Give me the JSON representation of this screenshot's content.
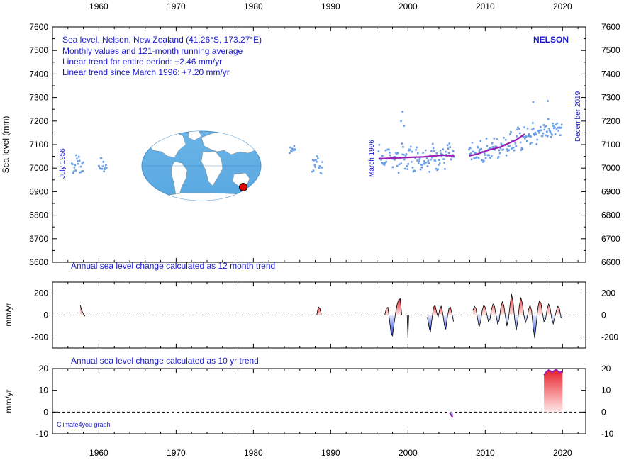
{
  "chart_data": [
    {
      "type": "scatter",
      "xlim": [
        1954,
        2023
      ],
      "ylim": [
        6600,
        7600
      ],
      "ylabel": "Sea level (mm)",
      "x_ticks": [
        "1960",
        "1970",
        "1980",
        "1990",
        "2000",
        "2010",
        "2020"
      ],
      "y_ticks": [
        "7600",
        "7500",
        "7400",
        "7300",
        "7200",
        "7100",
        "7000",
        "6900",
        "6800",
        "6700",
        "6600"
      ],
      "title_lines": [
        "Sea level, Nelson, New Zealand (41.26°S, 173.27°E)",
        "Monthly values and 121-month running average",
        "Linear trend for entire period: +2.46 mm/yr",
        "Linear trend since March 1996: +7.20 mm/yr"
      ],
      "station_label": "NELSON",
      "annotations": [
        "July 1956",
        "March 1996",
        "December 2019"
      ],
      "point_color": "#6a9ee8",
      "trend_color": "#9b1fb5",
      "monthly_segments": [
        {
          "x_start": 1956.5,
          "x_end": 1958.0,
          "mean": 7020,
          "trend": 0,
          "spread": 45
        },
        {
          "x_start": 1960.0,
          "x_end": 1961.0,
          "mean": 7010,
          "trend": 0,
          "spread": 30
        },
        {
          "x_start": 1984.7,
          "x_end": 1985.5,
          "mean": 7080,
          "trend": 0,
          "spread": 18
        },
        {
          "x_start": 1987.6,
          "x_end": 1989.0,
          "mean": 7020,
          "trend": 0,
          "spread": 40
        },
        {
          "x_start": 1996.2,
          "x_end": 2006.0,
          "mean": 7040,
          "trend": 1,
          "spread": 55
        },
        {
          "x_start": 2007.9,
          "x_end": 2019.95,
          "mean": 7050,
          "trend": 11,
          "spread": 50
        }
      ],
      "outliers": [
        {
          "x": 1999.3,
          "y": 7240
        },
        {
          "x": 1999.1,
          "y": 7200
        },
        {
          "x": 1999.5,
          "y": 7180
        },
        {
          "x": 2016.2,
          "y": 7280
        },
        {
          "x": 2018.1,
          "y": 7285
        }
      ],
      "running_average": [
        {
          "x": 1996.2,
          "y": 7040
        },
        {
          "x": 1997.5,
          "y": 7042
        },
        {
          "x": 1999.0,
          "y": 7044
        },
        {
          "x": 2000.5,
          "y": 7046
        },
        {
          "x": 2002.0,
          "y": 7048
        },
        {
          "x": 2003.5,
          "y": 7052
        },
        {
          "x": 2004.5,
          "y": 7055
        },
        {
          "x": 2005.2,
          "y": 7053
        },
        {
          "x": 2006.0,
          "y": 7052
        }
      ],
      "running_average_2": [
        {
          "x": 2007.9,
          "y": 7052
        },
        {
          "x": 2009.0,
          "y": 7060
        },
        {
          "x": 2010.0,
          "y": 7072
        },
        {
          "x": 2011.0,
          "y": 7082
        },
        {
          "x": 2012.0,
          "y": 7090
        },
        {
          "x": 2013.0,
          "y": 7105
        },
        {
          "x": 2014.0,
          "y": 7120
        },
        {
          "x": 2015.1,
          "y": 7145
        }
      ]
    },
    {
      "type": "area",
      "title": "Annual sea level change calculated as 12 month trend",
      "ylabel": "mm/yr",
      "xlim": [
        1954,
        2023
      ],
      "ylim": [
        -300,
        300
      ],
      "y_ticks": [
        "200",
        "0",
        "-200"
      ],
      "positive_color": "#e8202a",
      "negative_color": "#1a36d6",
      "series": [
        {
          "x": [
            1957.6,
            1957.8,
            1958.0,
            1958.2
          ],
          "y": [
            90,
            40,
            10,
            -10
          ]
        },
        {
          "x": [
            1988.2,
            1988.4,
            1988.6,
            1988.8
          ],
          "y": [
            0,
            75,
            60,
            0
          ]
        },
        {
          "x": [
            1997.0,
            1997.2,
            1997.4,
            1997.6,
            1997.8,
            1998.0,
            1998.2,
            1998.4,
            1998.6,
            1998.8,
            1999.0,
            1999.2
          ],
          "y": [
            0,
            60,
            70,
            -40,
            -160,
            -190,
            -80,
            20,
            100,
            140,
            150,
            0
          ]
        },
        {
          "x": [
            1999.9,
            2000.0,
            2000.1
          ],
          "y": [
            0,
            -210,
            0
          ]
        },
        {
          "x": [
            2002.5,
            2002.7,
            2002.9,
            2003.1,
            2003.3,
            2003.5,
            2003.7,
            2003.9,
            2004.1,
            2004.3,
            2004.5,
            2004.7,
            2004.9,
            2005.1,
            2005.3,
            2005.5,
            2005.7,
            2005.9
          ],
          "y": [
            -20,
            -100,
            -160,
            -40,
            70,
            90,
            30,
            -20,
            50,
            80,
            20,
            -90,
            -130,
            -20,
            60,
            70,
            10,
            -60
          ]
        },
        {
          "x": [
            2008.4,
            2008.6,
            2008.8,
            2009.0,
            2009.2,
            2009.4,
            2009.6,
            2009.8,
            2010.0,
            2010.2,
            2010.4,
            2010.6,
            2010.8,
            2011.0,
            2011.2,
            2011.4,
            2011.6,
            2011.8,
            2012.0,
            2012.2,
            2012.4,
            2012.6,
            2012.8,
            2013.0,
            2013.2,
            2013.4,
            2013.6,
            2013.8,
            2014.0,
            2014.2,
            2014.4,
            2014.6,
            2014.8,
            2015.0,
            2015.2,
            2015.4,
            2015.6,
            2015.8,
            2016.0,
            2016.2,
            2016.4,
            2016.6,
            2016.8,
            2017.0,
            2017.2,
            2017.4,
            2017.6,
            2017.8,
            2018.0,
            2018.2,
            2018.4,
            2018.6,
            2018.8,
            2019.0,
            2019.2,
            2019.4,
            2019.6,
            2019.8,
            2020.0
          ],
          "y": [
            40,
            80,
            60,
            -30,
            -110,
            -60,
            40,
            90,
            70,
            10,
            -60,
            -40,
            50,
            100,
            80,
            0,
            -80,
            -50,
            60,
            120,
            90,
            -10,
            -100,
            -40,
            90,
            190,
            120,
            -30,
            -140,
            -60,
            80,
            160,
            110,
            0,
            -70,
            -30,
            50,
            90,
            40,
            -120,
            -210,
            -90,
            60,
            130,
            110,
            20,
            -60,
            -40,
            50,
            100,
            60,
            -30,
            -80,
            -20,
            40,
            80,
            60,
            -20,
            -30
          ]
        }
      ]
    },
    {
      "type": "area",
      "title": "Annual sea level change calculated as 10 yr trend",
      "ylabel": "mm/yr",
      "xlim": [
        1954,
        2023
      ],
      "ylim": [
        -10,
        20
      ],
      "y_ticks": [
        "20",
        "10",
        "0",
        "-10"
      ],
      "credit": "Climate4you graph",
      "positive_color": "#e8202a",
      "negative_color": "#1a36d6",
      "top_line_color": "#9b1fb5",
      "series": [
        {
          "x": [
            2005.4,
            2005.5,
            2005.6,
            2005.7,
            2005.8
          ],
          "y": [
            -0.3,
            -1.0,
            -1.6,
            -2.0,
            -2.4
          ]
        },
        {
          "x": [
            2017.6,
            2017.8,
            2018.0,
            2018.2,
            2018.4,
            2018.6,
            2018.8,
            2019.0,
            2019.2,
            2019.4,
            2019.6,
            2019.8,
            2020.0
          ],
          "y": [
            17.0,
            18.0,
            18.8,
            19.3,
            19.0,
            18.4,
            18.6,
            19.2,
            19.5,
            18.8,
            18.2,
            18.5,
            18.8
          ]
        }
      ]
    }
  ]
}
